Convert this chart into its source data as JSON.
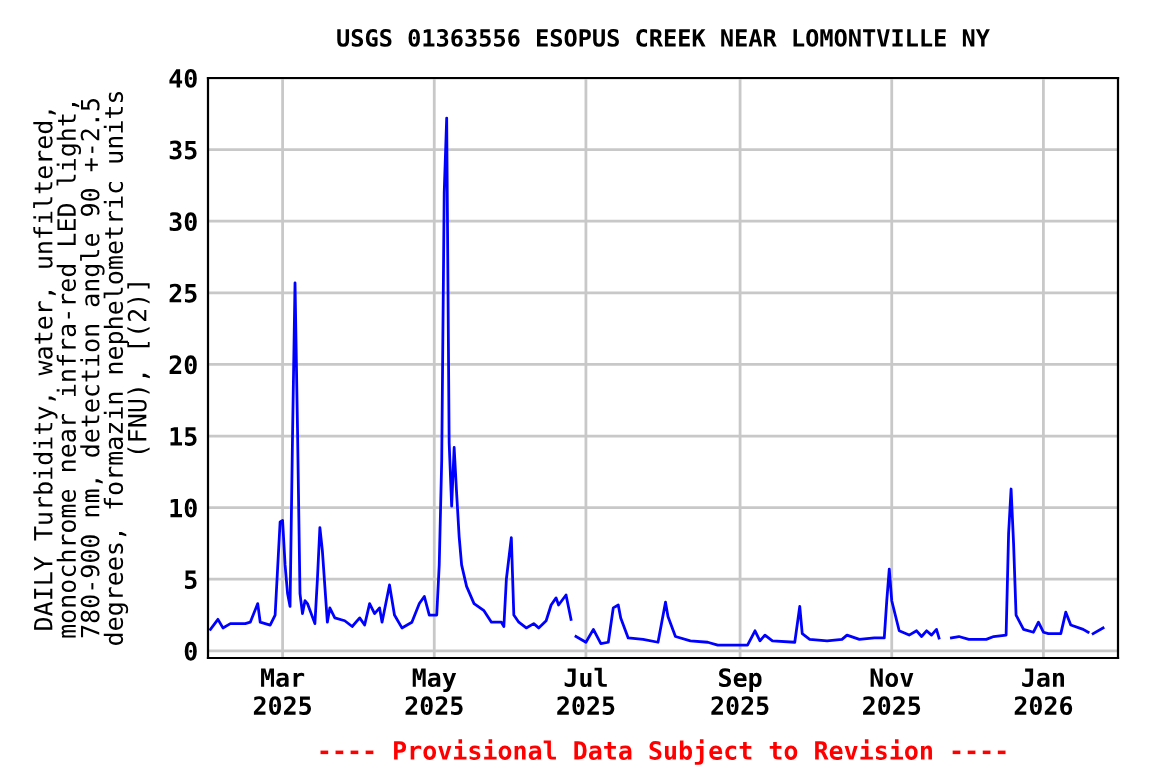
{
  "chart_data": {
    "type": "line",
    "title": "USGS 01363556 ESOPUS CREEK NEAR LOMONTVILLE NY",
    "ylabel": "DAILY Turbidity, water, unfiltered,\nmonochrome near infra-red LED light,\n780-900 nm, detection angle 90 +-2.5\ndegrees, formazin nephelometric units\n(FNU), [(2)]",
    "annotations": [
      "---- Provisional Data Subject to Revision ----"
    ],
    "x": [
      "2025-01-31",
      "2025-02-03",
      "2025-02-05",
      "2025-02-08",
      "2025-02-14",
      "2025-02-16",
      "2025-02-19",
      "2025-02-20",
      "2025-02-24",
      "2025-02-26",
      "2025-02-28",
      "2025-03-01",
      "2025-03-02",
      "2025-03-03",
      "2025-03-04",
      "2025-03-05",
      "2025-03-06",
      "2025-03-07",
      "2025-03-08",
      "2025-03-09",
      "2025-03-10",
      "2025-03-11",
      "2025-03-14",
      "2025-03-15",
      "2025-03-16",
      "2025-03-17",
      "2025-03-19",
      "2025-03-20",
      "2025-03-22",
      "2025-03-26",
      "2025-03-29",
      "2025-04-01",
      "2025-04-03",
      "2025-04-05",
      "2025-04-07",
      "2025-04-09",
      "2025-04-10",
      "2025-04-13",
      "2025-04-15",
      "2025-04-18",
      "2025-04-22",
      "2025-04-25",
      "2025-04-27",
      "2025-04-29",
      "2025-05-02",
      "2025-05-03",
      "2025-05-04",
      "2025-05-05",
      "2025-05-06",
      "2025-05-07",
      "2025-05-08",
      "2025-05-09",
      "2025-05-10",
      "2025-05-11",
      "2025-05-12",
      "2025-05-14",
      "2025-05-17",
      "2025-05-21",
      "2025-05-24",
      "2025-05-28",
      "2025-05-29",
      "2025-05-30",
      "2025-06-01",
      "2025-06-02",
      "2025-06-04",
      "2025-06-07",
      "2025-06-10",
      "2025-06-12",
      "2025-06-15",
      "2025-06-17",
      "2025-06-19",
      "2025-06-20",
      "2025-06-23",
      "2025-06-25",
      "2025-06-26",
      "2025-06-27",
      "2025-07-01",
      "2025-07-04",
      "2025-07-07",
      "2025-07-10",
      "2025-07-12",
      "2025-07-14",
      "2025-07-15",
      "2025-07-18",
      "2025-07-24",
      "2025-07-30",
      "2025-08-02",
      "2025-08-03",
      "2025-08-06",
      "2025-08-12",
      "2025-08-19",
      "2025-08-23",
      "2025-09-04",
      "2025-09-07",
      "2025-09-09",
      "2025-09-11",
      "2025-09-14",
      "2025-09-23",
      "2025-09-25",
      "2025-09-26",
      "2025-09-29",
      "2025-10-06",
      "2025-10-12",
      "2025-10-14",
      "2025-10-19",
      "2025-10-25",
      "2025-10-29",
      "2025-10-30",
      "2025-10-31",
      "2025-11-01",
      "2025-11-04",
      "2025-11-08",
      "2025-11-11",
      "2025-11-13",
      "2025-11-15",
      "2025-11-17",
      "2025-11-19",
      "2025-11-20",
      "2025-11-22",
      "2025-11-25",
      "2025-11-28",
      "2025-12-02",
      "2025-12-09",
      "2025-12-12",
      "2025-12-17",
      "2025-12-18",
      "2025-12-19",
      "2025-12-20",
      "2025-12-21",
      "2025-12-24",
      "2025-12-28",
      "2025-12-30",
      "2026-01-01",
      "2026-01-03",
      "2026-01-08",
      "2026-01-10",
      "2026-01-12",
      "2026-01-17",
      "2026-01-19",
      "2026-01-20",
      "2026-01-21",
      "2026-01-25"
    ],
    "series": [
      {
        "color": "#0000ff",
        "values": [
          1.5,
          2.2,
          1.6,
          1.9,
          1.9,
          2.0,
          3.3,
          2.0,
          1.8,
          2.5,
          9.0,
          9.1,
          6,
          4,
          3.1,
          15.0,
          25.7,
          15.5,
          4.0,
          2.6,
          3.5,
          3.3,
          1.9,
          5,
          8.6,
          7,
          2.0,
          3.0,
          2.3,
          2.1,
          1.7,
          2.3,
          1.8,
          3.3,
          2.6,
          3.0,
          2.0,
          4.6,
          2.5,
          1.6,
          2.0,
          3.3,
          3.8,
          2.5,
          2.5,
          6,
          13.3,
          32.0,
          37.2,
          14.5,
          10.1,
          14.2,
          11,
          8,
          6,
          4.5,
          3.3,
          2.8,
          2.0,
          2.0,
          1.7,
          5,
          7.9,
          2.5,
          2.0,
          1.6,
          1.9,
          1.6,
          2.1,
          3.2,
          3.7,
          3.2,
          3.9,
          2.2,
          null,
          1.0,
          0.6,
          1.5,
          0.5,
          0.6,
          3.0,
          3.2,
          2.3,
          0.9,
          0.8,
          0.6,
          3.4,
          2.4,
          1.0,
          0.7,
          0.6,
          0.4,
          0.4,
          1.4,
          0.7,
          1.1,
          0.7,
          0.6,
          3.1,
          1.2,
          0.8,
          0.7,
          0.8,
          1.1,
          0.8,
          0.9,
          0.9,
          3.5,
          5.7,
          3.5,
          1.4,
          1.1,
          1.4,
          1.0,
          1.4,
          1.1,
          1.5,
          0.9,
          null,
          0.9,
          1.0,
          0.8,
          0.8,
          1.0,
          1.1,
          8.2,
          11.3,
          7.5,
          2.5,
          1.5,
          1.3,
          2.0,
          1.3,
          1.2,
          1.2,
          2.7,
          1.8,
          1.5,
          1.3,
          null,
          1.2,
          1.6
        ]
      }
    ],
    "xlim": [
      "2025-01-30",
      "2026-01-31"
    ],
    "xticks": [
      {
        "value": "2025-03-01",
        "label": "Mar\n2025"
      },
      {
        "value": "2025-05-01",
        "label": "May\n2025"
      },
      {
        "value": "2025-07-01",
        "label": "Jul\n2025"
      },
      {
        "value": "2025-09-01",
        "label": "Sep\n2025"
      },
      {
        "value": "2025-11-01",
        "label": "Nov\n2025"
      },
      {
        "value": "2026-01-01",
        "label": "Jan\n2026"
      }
    ],
    "ylim": [
      -0.5,
      40
    ],
    "yticks": [
      0,
      5,
      10,
      15,
      20,
      25,
      30,
      35,
      40
    ],
    "grid": true,
    "legend": false,
    "marker": "none",
    "line_style": "solid"
  }
}
